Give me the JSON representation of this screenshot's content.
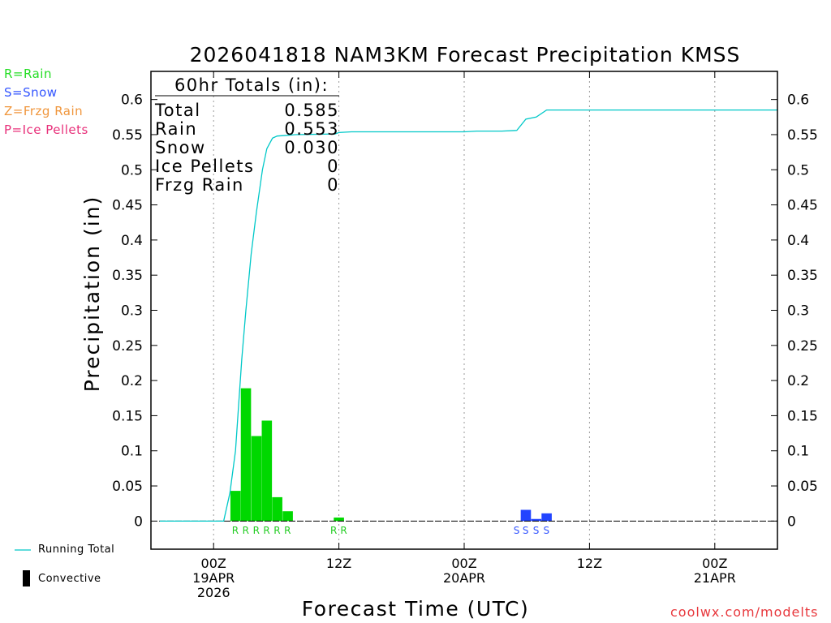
{
  "chart_data": {
    "type": "bar",
    "title": "2026041818 NAM3KM Forecast Precipitation KMSS",
    "xlabel": "Forecast Time (UTC)",
    "ylabel": "Precipitation (in)",
    "ylim": [
      -0.04,
      0.64
    ],
    "yticks": [
      "0",
      "0.05",
      "0.1",
      "0.15",
      "0.2",
      "0.25",
      "0.3",
      "0.35",
      "0.4",
      "0.45",
      "0.5",
      "0.55",
      "0.6"
    ],
    "xlim_hours": [
      -5,
      45
    ],
    "xticks": [
      {
        "hour": 0,
        "lines": [
          "00Z",
          "19APR",
          "2026"
        ]
      },
      {
        "hour": 10,
        "lines": [
          "12Z"
        ]
      },
      {
        "hour": 20,
        "lines": [
          "00Z",
          "20APR"
        ]
      },
      {
        "hour": 30,
        "lines": [
          "12Z"
        ]
      },
      {
        "hour": 40,
        "lines": [
          "00Z",
          "21APR"
        ]
      }
    ],
    "rain_bars": [
      {
        "hour": 1.75,
        "value": 0.043
      },
      {
        "hour": 2.58,
        "value": 0.189
      },
      {
        "hour": 3.42,
        "value": 0.121
      },
      {
        "hour": 4.25,
        "value": 0.143
      },
      {
        "hour": 5.08,
        "value": 0.034
      },
      {
        "hour": 5.92,
        "value": 0.014
      },
      {
        "hour": 10.0,
        "value": 0.005
      }
    ],
    "snow_bars": [
      {
        "hour": 24.92,
        "value": 0.016
      },
      {
        "hour": 25.75,
        "value": 0.003
      },
      {
        "hour": 26.58,
        "value": 0.011
      }
    ],
    "running_total": [
      [
        -4.3,
        0
      ],
      [
        0.8,
        0
      ],
      [
        1.3,
        0.04
      ],
      [
        1.75,
        0.1
      ],
      [
        2.25,
        0.23
      ],
      [
        2.58,
        0.3
      ],
      [
        3.0,
        0.38
      ],
      [
        3.42,
        0.44
      ],
      [
        3.9,
        0.5
      ],
      [
        4.25,
        0.53
      ],
      [
        4.7,
        0.545
      ],
      [
        5.08,
        0.548
      ],
      [
        5.92,
        0.549
      ],
      [
        6.5,
        0.55
      ],
      [
        9.7,
        0.551
      ],
      [
        10.0,
        0.553
      ],
      [
        11.0,
        0.554
      ],
      [
        20.0,
        0.554
      ],
      [
        21.0,
        0.555
      ],
      [
        23.0,
        0.555
      ],
      [
        24.2,
        0.556
      ],
      [
        24.92,
        0.572
      ],
      [
        25.75,
        0.575
      ],
      [
        26.58,
        0.585
      ],
      [
        45,
        0.585
      ]
    ],
    "ptype_labels": [
      {
        "hour": 1.75,
        "text": "R",
        "ptype": "rain"
      },
      {
        "hour": 2.58,
        "text": "R",
        "ptype": "rain"
      },
      {
        "hour": 3.42,
        "text": "R",
        "ptype": "rain"
      },
      {
        "hour": 4.25,
        "text": "R",
        "ptype": "rain"
      },
      {
        "hour": 5.08,
        "text": "R",
        "ptype": "rain"
      },
      {
        "hour": 5.92,
        "text": "R",
        "ptype": "rain"
      },
      {
        "hour": 9.6,
        "text": "R",
        "ptype": "rain"
      },
      {
        "hour": 10.4,
        "text": "R",
        "ptype": "rain"
      },
      {
        "hour": 24.2,
        "text": "S",
        "ptype": "snow"
      },
      {
        "hour": 24.92,
        "text": "S",
        "ptype": "snow"
      },
      {
        "hour": 25.75,
        "text": "S",
        "ptype": "snow"
      },
      {
        "hour": 26.58,
        "text": "S",
        "ptype": "snow"
      }
    ],
    "totals_box": {
      "header": "60hr Totals (in):",
      "rows": [
        {
          "label": "Total",
          "value": "0.585"
        },
        {
          "label": "Rain",
          "value": "0.553"
        },
        {
          "label": "Snow",
          "value": "0.030"
        },
        {
          "label": "Ice Pellets",
          "value": "0"
        },
        {
          "label": "Frzg Rain",
          "value": "0"
        }
      ]
    },
    "grid": "vertical dotted at 00Z/12Z"
  },
  "ptype_legend": [
    {
      "text": "R=Rain",
      "color": "#22dd22"
    },
    {
      "text": "S=Snow",
      "color": "#3355ff"
    },
    {
      "text": "Z=Frzg Rain",
      "color": "#f0963c"
    },
    {
      "text": "P=Ice Pellets",
      "color": "#e8307a"
    }
  ],
  "line_legend": {
    "running_total": "Running Total",
    "convective": "Convective"
  },
  "credit": "coolwx.com/modelts",
  "colors": {
    "rain": "#00d800",
    "snow": "#2244ff",
    "line": "#00c8c8",
    "rain_text": "#22cc22",
    "snow_text": "#3355ff"
  }
}
